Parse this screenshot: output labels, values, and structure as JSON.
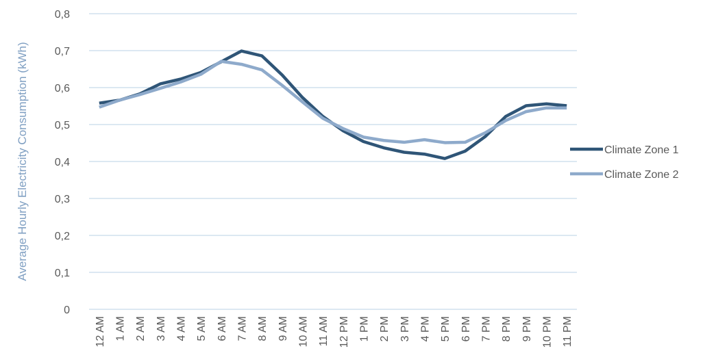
{
  "chart_data": {
    "type": "line",
    "y_label": "Average Hourly Electricity Consumption (kWh)",
    "categories": [
      "12 AM",
      "1 AM",
      "2 AM",
      "3 AM",
      "4 AM",
      "5 AM",
      "6 AM",
      "7 AM",
      "8 AM",
      "9 AM",
      "10 AM",
      "11 AM",
      "12 PM",
      "1 PM",
      "2 PM",
      "3 PM",
      "4 PM",
      "5 PM",
      "6 PM",
      "7 PM",
      "8 PM",
      "9 PM",
      "10 PM",
      "11 PM"
    ],
    "series": [
      {
        "name": "Climate Zone 1",
        "color": "#2f5577",
        "values": [
          0.558,
          0.566,
          0.583,
          0.61,
          0.623,
          0.641,
          0.67,
          0.699,
          0.686,
          0.634,
          0.573,
          0.522,
          0.483,
          0.454,
          0.437,
          0.425,
          0.42,
          0.408,
          0.428,
          0.468,
          0.522,
          0.551,
          0.556,
          0.551
        ]
      },
      {
        "name": "Climate Zone 2",
        "color": "#8eaacb",
        "values": [
          0.547,
          0.566,
          0.581,
          0.598,
          0.615,
          0.636,
          0.671,
          0.663,
          0.648,
          0.606,
          0.561,
          0.517,
          0.489,
          0.466,
          0.457,
          0.452,
          0.459,
          0.451,
          0.452,
          0.478,
          0.511,
          0.535,
          0.545,
          0.545
        ]
      }
    ],
    "ylim": [
      0,
      0.8
    ],
    "yticks": [
      0,
      {
        "value": 0.1,
        "label": "0,1"
      },
      {
        "value": 0.2,
        "label": "0,2"
      },
      {
        "value": 0.3,
        "label": "0,3"
      },
      {
        "value": 0.4,
        "label": "0,4"
      },
      {
        "value": 0.5,
        "label": "0,5"
      },
      {
        "value": 0.6,
        "label": "0,6"
      },
      {
        "value": 0.7,
        "label": "0,7"
      },
      {
        "value": 0.8,
        "label": "0,8"
      }
    ],
    "grid": true,
    "legend": "right"
  }
}
